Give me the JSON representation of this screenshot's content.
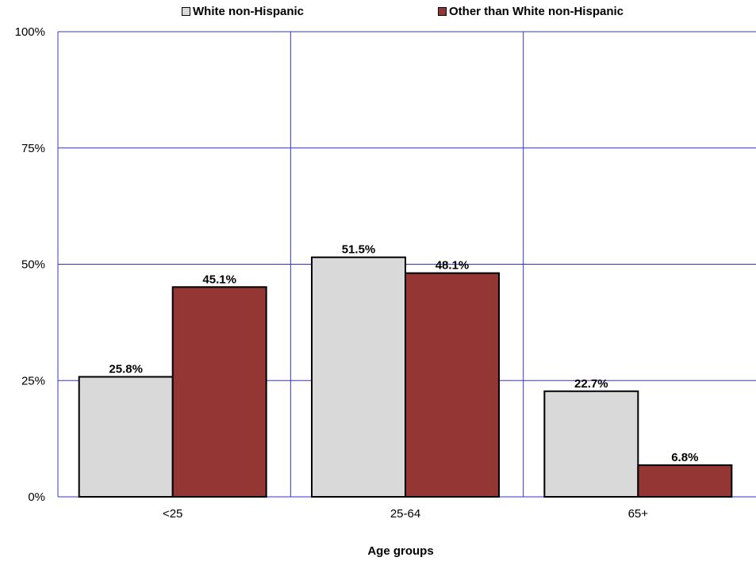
{
  "chart_data": {
    "type": "bar",
    "title": "",
    "xlabel": "Age groups",
    "ylabel": "",
    "categories": [
      "<25",
      "25-64",
      "65+"
    ],
    "series": [
      {
        "name": "White non-Hispanic",
        "values": [
          25.8,
          51.5,
          22.7
        ],
        "labels": [
          "25.8%",
          "51.5%",
          "22.7%"
        ],
        "color": "#d9d9d9"
      },
      {
        "name": "Other than White non-Hispanic",
        "values": [
          45.1,
          48.1,
          6.8
        ],
        "labels": [
          "45.1%",
          "48.1%",
          "6.8%"
        ],
        "color": "#943634"
      }
    ],
    "ylim": [
      0,
      100
    ],
    "yticks": [
      0,
      25,
      50,
      75,
      100
    ],
    "ytick_labels": [
      "0%",
      "25%",
      "50%",
      "75%",
      "100%"
    ],
    "grid": true,
    "grid_color": "#3333cc",
    "legend_position": "top"
  }
}
